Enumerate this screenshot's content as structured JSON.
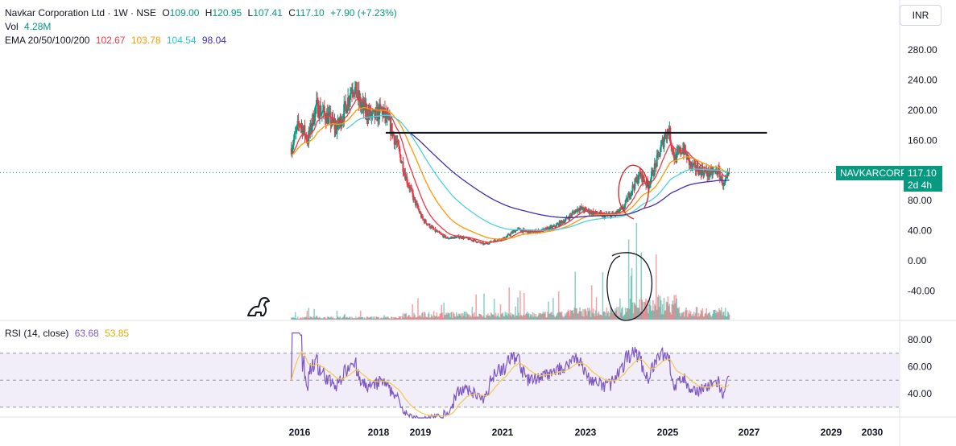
{
  "header": {
    "symbol_title": "Navkar Corporation Ltd · 1W · NSE",
    "o_label": "O",
    "o_value": "109.00",
    "h_label": "H",
    "h_value": "120.95",
    "l_label": "L",
    "l_value": "107.41",
    "c_label": "C",
    "c_value": "117.10",
    "change": "+7.90 (+7.23%)"
  },
  "vol": {
    "label": "Vol",
    "value": "4.28M"
  },
  "ema": {
    "label": "EMA 20/50/100/200",
    "v20": "102.67",
    "v50": "103.78",
    "v100": "104.54",
    "v200": "98.04"
  },
  "rsi": {
    "label": "RSI (14, close)",
    "v1": "63.68",
    "v2": "53.85"
  },
  "currency": "INR",
  "price_tag": {
    "symbol": "NAVKARCORP",
    "price": "117.10",
    "countdown": "2d 4h"
  },
  "colors": {
    "up": "#089981",
    "down": "#f23645",
    "ema20": "#f23645",
    "ema50": "#ff9800",
    "ema100": "#4dd0e1",
    "ema200": "#3f2fb0",
    "rsi": "#7e57c2",
    "rsi_ma": "#f2c94c",
    "rsi_band": "#ede7f6"
  },
  "chart_data": {
    "type": "candlestick",
    "interval": "1W",
    "price_axis": {
      "ticks": [
        "280.00",
        "240.00",
        "200.00",
        "160.00",
        "120.00",
        "80.00",
        "40.00",
        "0.00",
        "-40.00"
      ],
      "ylim": [
        -40,
        280
      ]
    },
    "rsi_axis": {
      "ticks": [
        "80.00",
        "60.00",
        "40.00"
      ],
      "upper_band": 70,
      "lower_band": 30
    },
    "x_axis": {
      "ticks": [
        "2016",
        "2018",
        "2019",
        "2021",
        "2023",
        "2025",
        "2027",
        "2029",
        "2030"
      ]
    },
    "resistance_line": {
      "level": 170,
      "from": "2018.1",
      "to": "2027.4"
    },
    "price_anchors": [
      [
        2015.8,
        150
      ],
      [
        2016.0,
        185
      ],
      [
        2016.2,
        160
      ],
      [
        2016.4,
        205
      ],
      [
        2016.7,
        190
      ],
      [
        2016.9,
        175
      ],
      [
        2017.1,
        200
      ],
      [
        2017.3,
        235
      ],
      [
        2017.5,
        205
      ],
      [
        2017.8,
        190
      ],
      [
        2018.0,
        200
      ],
      [
        2018.2,
        180
      ],
      [
        2018.4,
        150
      ],
      [
        2018.6,
        110
      ],
      [
        2018.8,
        80
      ],
      [
        2019.0,
        55
      ],
      [
        2019.3,
        40
      ],
      [
        2019.6,
        30
      ],
      [
        2019.9,
        32
      ],
      [
        2020.2,
        28
      ],
      [
        2020.5,
        22
      ],
      [
        2020.8,
        28
      ],
      [
        2021.0,
        30
      ],
      [
        2021.3,
        42
      ],
      [
        2021.6,
        38
      ],
      [
        2021.9,
        40
      ],
      [
        2022.2,
        45
      ],
      [
        2022.5,
        55
      ],
      [
        2022.8,
        70
      ],
      [
        2023.1,
        65
      ],
      [
        2023.4,
        60
      ],
      [
        2023.7,
        62
      ],
      [
        2023.9,
        70
      ],
      [
        2024.1,
        95
      ],
      [
        2024.3,
        115
      ],
      [
        2024.5,
        100
      ],
      [
        2024.7,
        130
      ],
      [
        2024.9,
        165
      ],
      [
        2025.0,
        175
      ],
      [
        2025.15,
        135
      ],
      [
        2025.35,
        150
      ],
      [
        2025.55,
        125
      ],
      [
        2025.8,
        120
      ],
      [
        2026.0,
        115
      ],
      [
        2026.2,
        120
      ],
      [
        2026.35,
        100
      ],
      [
        2026.5,
        117
      ]
    ],
    "series": [
      {
        "name": "EMA 20",
        "last": 102.67
      },
      {
        "name": "EMA 50",
        "last": 103.78
      },
      {
        "name": "EMA 100",
        "last": 104.54
      },
      {
        "name": "EMA 200",
        "last": 98.04
      },
      {
        "name": "RSI (14, close)",
        "last": 63.68
      },
      {
        "name": "RSI MA",
        "last": 53.85
      }
    ],
    "last_close": 117.1
  }
}
